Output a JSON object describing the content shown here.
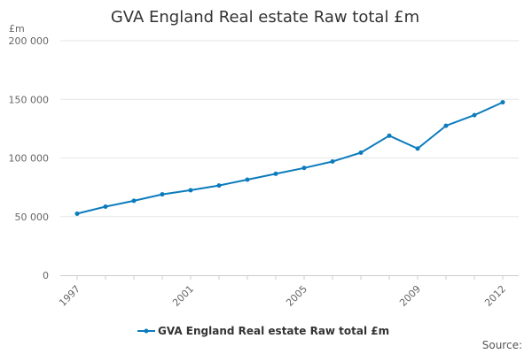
{
  "chart_data": {
    "type": "line",
    "title": "GVA England Real estate Raw total £m",
    "ylabel": "£m",
    "xlabel": "",
    "ylim": [
      0,
      200000
    ],
    "yticks": [
      0,
      50000,
      100000,
      150000,
      200000
    ],
    "ytick_labels": [
      "0",
      "50 000",
      "100 000",
      "150 000",
      "200 000"
    ],
    "xtick_labels": [
      "1997",
      "2001",
      "2005",
      "2009",
      "2012"
    ],
    "x": [
      1997,
      1998,
      1999,
      2000,
      2001,
      2002,
      2003,
      2004,
      2005,
      2006,
      2007,
      2008,
      2009,
      2010,
      2011,
      2012
    ],
    "series": [
      {
        "name": "GVA England Real estate Raw total £m",
        "color": "#0b7bbd",
        "values": [
          52500,
          58500,
          63500,
          69000,
          72500,
          76500,
          81500,
          86500,
          91500,
          97000,
          104500,
          119000,
          108000,
          127500,
          136500,
          147500
        ]
      }
    ],
    "grid": "horizontal",
    "legend": "bottom-center",
    "source_label": "Source:"
  }
}
